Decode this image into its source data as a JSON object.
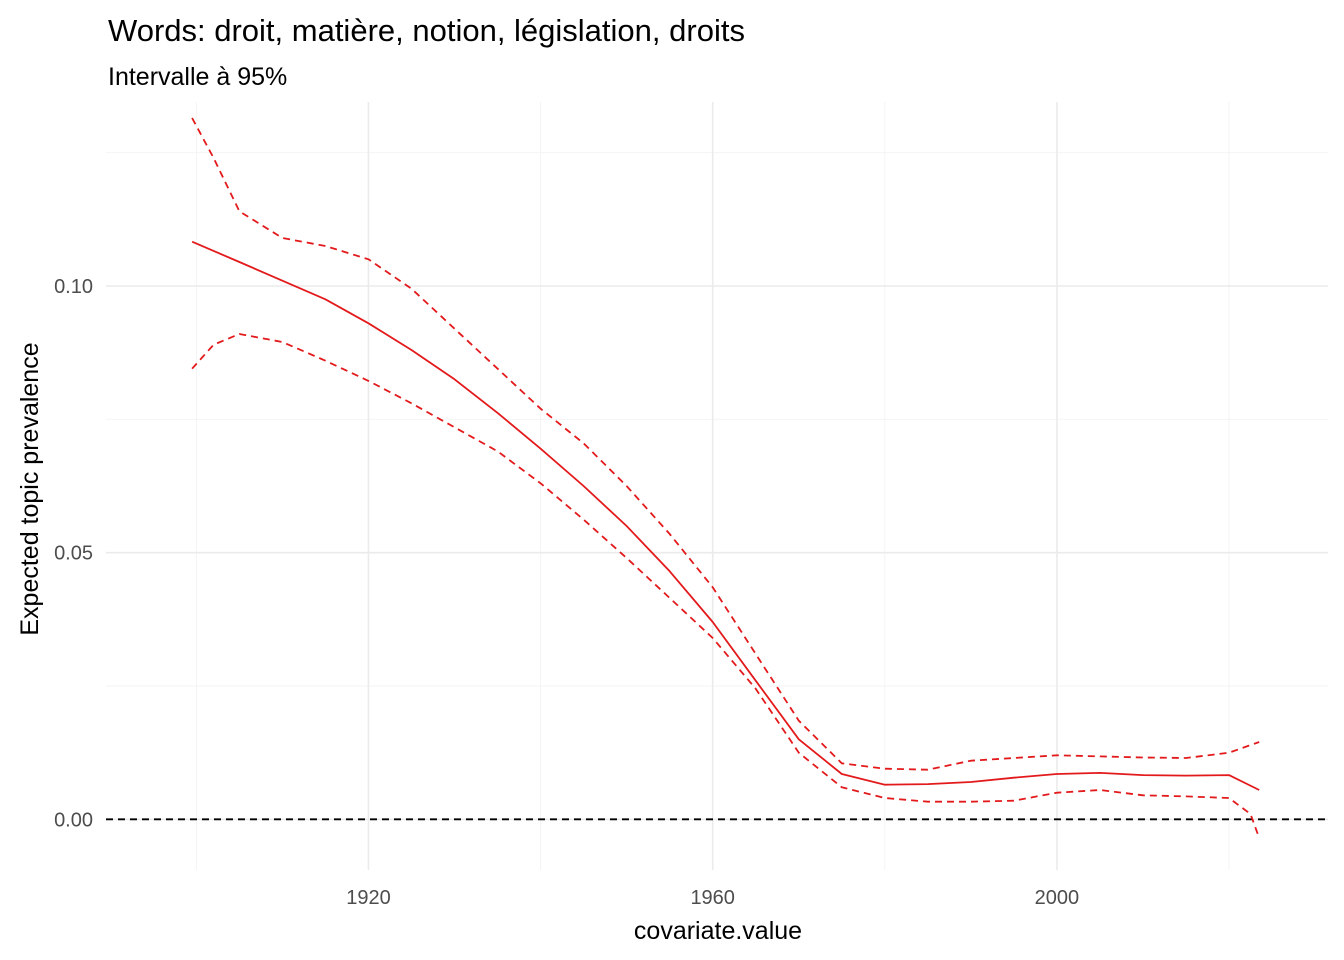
{
  "chart_data": {
    "type": "line",
    "title": "Words: droit, matière, notion, législation, droits",
    "subtitle": "Intervalle à 95%",
    "xlabel": "covariate.value",
    "ylabel": "Expected topic prevalence",
    "xlim": [
      1889.5,
      2031.5
    ],
    "ylim": [
      -0.0095,
      0.1345
    ],
    "x_ticks": [
      1920,
      1960,
      2000
    ],
    "x_tick_labels": [
      "1920",
      "1960",
      "2000"
    ],
    "x_minor_ticks": [
      1900,
      1940,
      1980,
      2020
    ],
    "y_ticks": [
      0.0,
      0.05,
      0.1
    ],
    "y_tick_labels": [
      "0.00",
      "0.05",
      "0.10"
    ],
    "y_minor_ticks": [
      0.025,
      0.075,
      0.125
    ],
    "grid": true,
    "legend": "none",
    "reference_line": {
      "y": 0.0,
      "style": "dashed",
      "color": "#000000"
    },
    "series": [
      {
        "style": "solid",
        "color": "#e31a1c",
        "x": [
          1899.5,
          1905,
          1910,
          1915,
          1920,
          1925,
          1930,
          1935,
          1940,
          1945,
          1950,
          1955,
          1960,
          1965,
          1970,
          1975,
          1980,
          1985,
          1990,
          1995,
          2000,
          2005,
          2010,
          2015,
          2020,
          2023.5
        ],
        "y": [
          0.1083,
          0.1045,
          0.101,
          0.0975,
          0.093,
          0.088,
          0.0825,
          0.0762,
          0.0695,
          0.0625,
          0.055,
          0.0465,
          0.037,
          0.026,
          0.015,
          0.0085,
          0.0065,
          0.0066,
          0.007,
          0.0078,
          0.0085,
          0.0087,
          0.0083,
          0.0082,
          0.0083,
          0.0055
        ]
      },
      {
        "style": "dashed",
        "color": "#e31a1c",
        "x": [
          1899.5,
          1902,
          1905,
          1910,
          1915,
          1920,
          1925,
          1930,
          1935,
          1940,
          1945,
          1950,
          1955,
          1960,
          1965,
          1970,
          1975,
          1980,
          1985,
          1990,
          1995,
          2000,
          2005,
          2010,
          2015,
          2020,
          2023.5
        ],
        "y": [
          0.1315,
          0.124,
          0.114,
          0.109,
          0.1075,
          0.105,
          0.0995,
          0.092,
          0.0845,
          0.077,
          0.0705,
          0.0625,
          0.0535,
          0.0435,
          0.031,
          0.0185,
          0.0105,
          0.0095,
          0.0093,
          0.011,
          0.0115,
          0.012,
          0.0118,
          0.0116,
          0.0115,
          0.0125,
          0.0145
        ]
      },
      {
        "style": "dashed",
        "color": "#e31a1c",
        "x": [
          1899.5,
          1902,
          1905,
          1910,
          1915,
          1920,
          1925,
          1930,
          1935,
          1940,
          1945,
          1950,
          1955,
          1960,
          1965,
          1970,
          1975,
          1980,
          1985,
          1990,
          1995,
          2000,
          2005,
          2010,
          2015,
          2020,
          2022.5,
          2023.5
        ],
        "y": [
          0.0845,
          0.089,
          0.091,
          0.0895,
          0.086,
          0.0822,
          0.078,
          0.0735,
          0.069,
          0.063,
          0.0562,
          0.049,
          0.0415,
          0.034,
          0.0245,
          0.0125,
          0.006,
          0.004,
          0.0033,
          0.0033,
          0.0035,
          0.005,
          0.0055,
          0.0045,
          0.0043,
          0.004,
          0.001,
          -0.0035
        ]
      }
    ]
  }
}
